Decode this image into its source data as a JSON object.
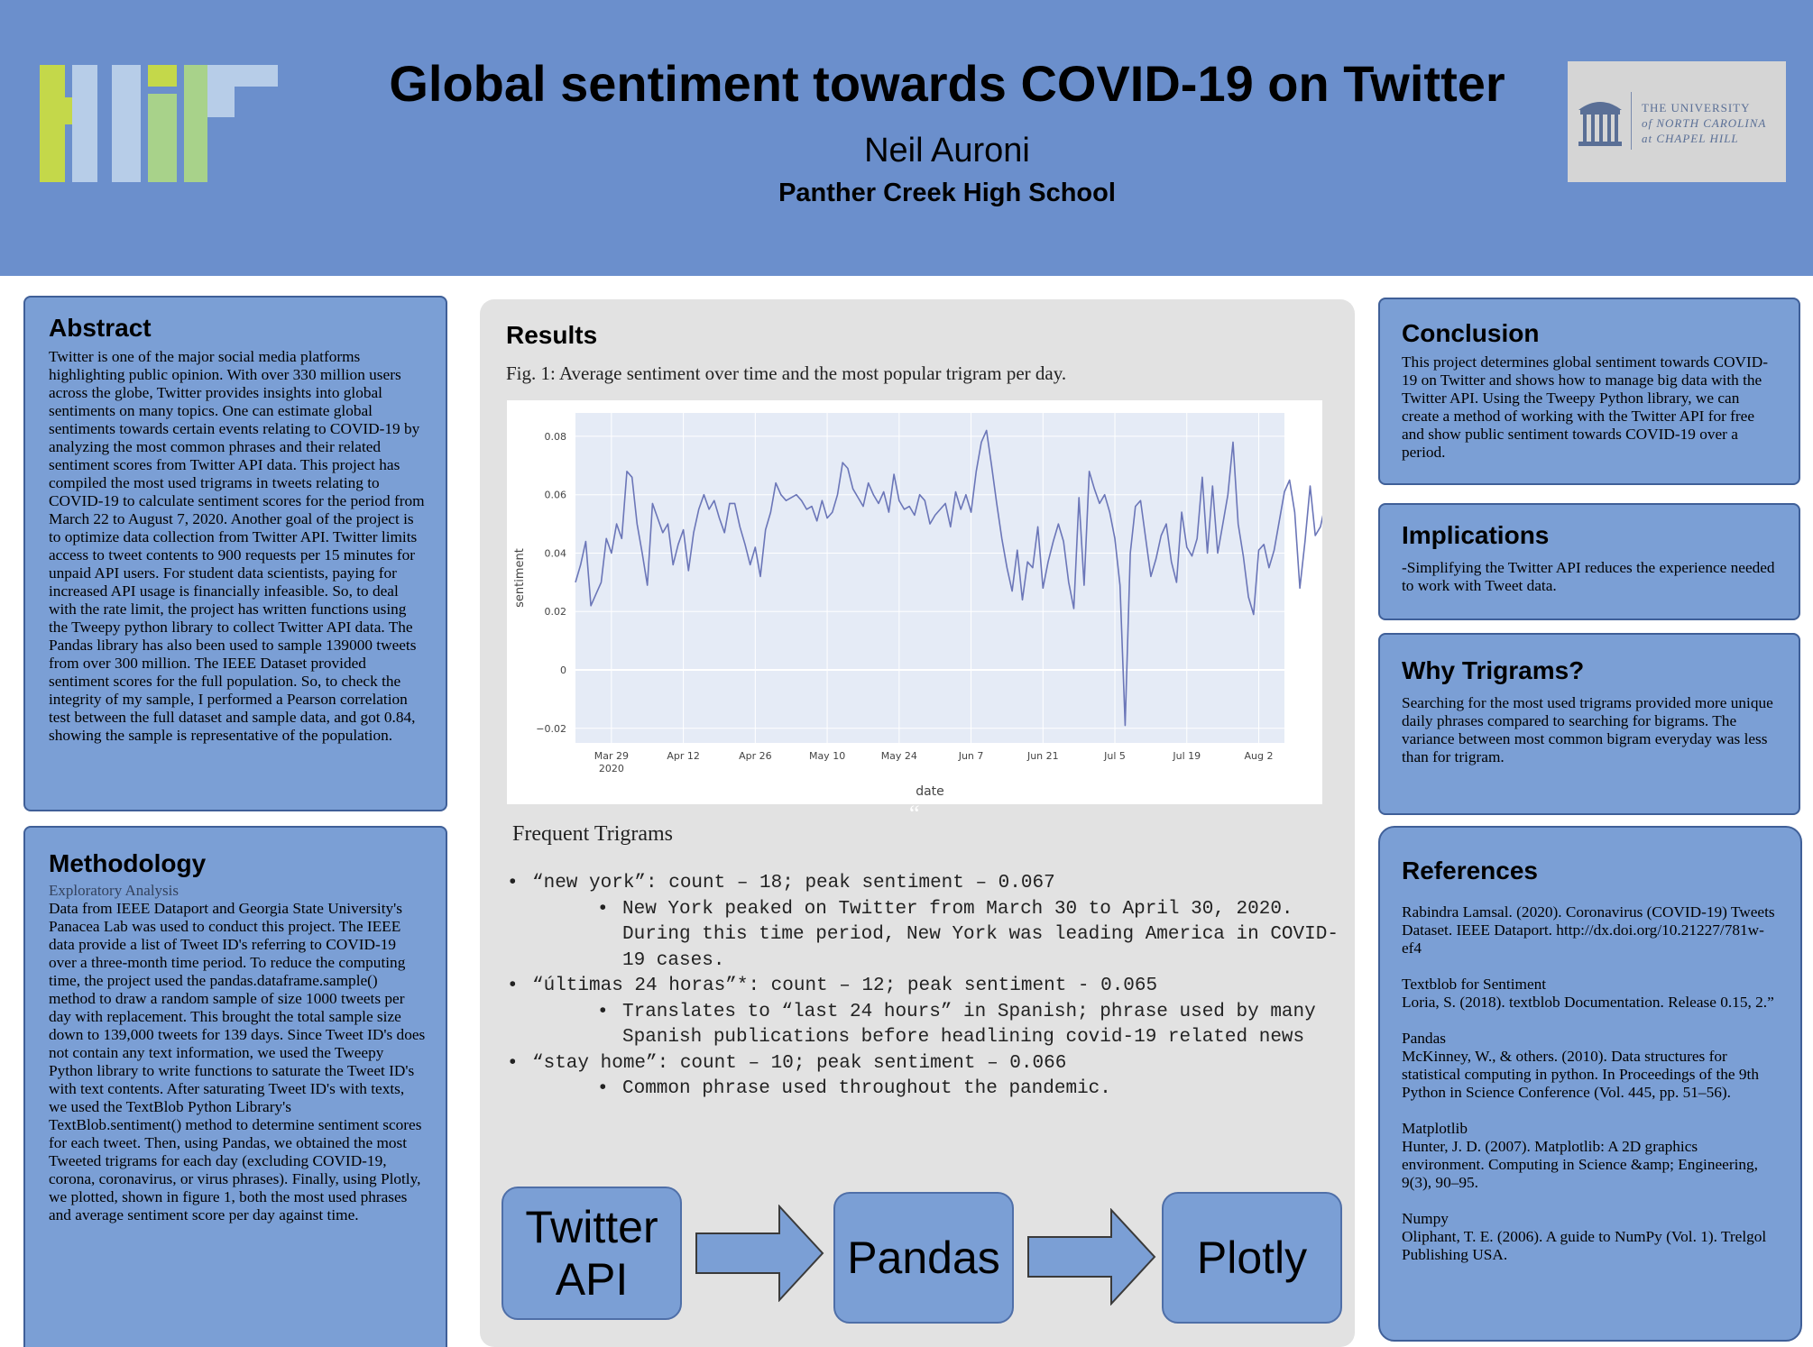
{
  "header": {
    "title": "Global sentiment towards COVID-19 on Twitter",
    "author": "Neil Auroni",
    "school": "Panther Creek High School",
    "unc_logo": {
      "line1": "THE UNIVERSITY",
      "line2": "of NORTH CAROLINA",
      "line3": "at CHAPEL HILL",
      "icon": "old-well-icon"
    },
    "left_logo_icon": "bars-logo-icon"
  },
  "abstract": {
    "heading": "Abstract",
    "text": "Twitter is one of the major social media platforms highlighting public opinion. With over 330 million users across the globe, Twitter provides insights into global sentiments on many topics. One can estimate global sentiments towards certain events relating to COVID-19 by analyzing the most common phrases and their related sentiment scores from Twitter API data. This project has compiled the most used trigrams in tweets relating to COVID-19 to calculate sentiment scores for the period from March 22 to August 7, 2020. Another goal of the project is to optimize data collection from Twitter API. Twitter limits access to tweet contents to 900 requests per 15 minutes for unpaid API users. For student data scientists, paying for increased API usage is financially infeasible. So, to deal with the rate limit, the project has written functions using the Tweepy python library to collect Twitter API data. The Pandas library has also been used to sample 139000 tweets from over 300 million. The IEEE Dataset provided sentiment scores for the full population. So, to check the integrity of my sample, I performed a Pearson correlation test between the full dataset and sample data, and got 0.84, showing the sample is representative of the population."
  },
  "methodology": {
    "heading": "Methodology",
    "subheading": "Exploratory Analysis",
    "text": "Data from IEEE Dataport and Georgia State University's Panacea Lab was used to conduct this project. The IEEE data provide a list of Tweet ID's referring to COVID-19 over a three-month time period. To reduce the computing time, the project used the pandas.dataframe.sample() method to draw a random sample of size 1000 tweets per day with replacement. This brought the total sample size down to 139,000 tweets for 139 days. Since Tweet ID's does not contain any text information, we used the Tweepy Python library to write functions to saturate the Tweet ID's with text contents. After saturating Tweet ID's with texts, we used the TextBlob Python Library's TextBlob.sentiment() method to determine sentiment scores for each tweet. Then, using Pandas, we obtained the most Tweeted trigrams for each day (excluding COVID-19, corona, coronavirus, or virus phrases). Finally, using Plotly, we plotted, shown in figure 1, both the most used phrases and average sentiment score per day against time."
  },
  "results": {
    "heading": "Results",
    "caption": "Fig. 1: Average sentiment over time and the most popular trigram per day.",
    "trigrams_heading": "Frequent Trigrams",
    "stray_mark": "“",
    "trigrams": [
      {
        "line": "“new york”: count – 18; peak sentiment – 0.067",
        "detail": "New York peaked on Twitter from March 30 to April 30, 2020. During this time period, New York was leading America in COVID-19 cases."
      },
      {
        "line": "“últimas 24 horas”*: count – 12; peak sentiment - 0.065",
        "detail": "Translates to “last 24 hours” in Spanish; phrase used by many Spanish publications before headlining covid-19 related news"
      },
      {
        "line": "“stay home”: count – 10; peak sentiment – 0.066",
        "detail": "Common phrase used throughout the pandemic."
      }
    ],
    "flow": [
      "Twitter API",
      "Pandas",
      "Plotly"
    ]
  },
  "chart_data": {
    "type": "line",
    "xlabel": "date",
    "ylabel": "sentiment",
    "ylim": [
      -0.025,
      0.088
    ],
    "y_ticks": [
      "0.08",
      "0.06",
      "0.04",
      "0.02",
      "0",
      "−0.02"
    ],
    "y_tick_values": [
      0.08,
      0.06,
      0.04,
      0.02,
      0,
      -0.02
    ],
    "x_ticks": [
      "Mar 29",
      "Apr 12",
      "Apr 26",
      "May 10",
      "May 24",
      "Jun 7",
      "Jun 21",
      "Jul 5",
      "Jul 19",
      "Aug 2"
    ],
    "x_tick_year": "2020",
    "x_start": "2020-03-22",
    "x_end": "2020-08-07",
    "series": [
      {
        "line_color": "#6b76b8",
        "values": [
          0.03,
          0.036,
          0.044,
          0.022,
          0.026,
          0.03,
          0.045,
          0.04,
          0.05,
          0.045,
          0.068,
          0.066,
          0.05,
          0.04,
          0.029,
          0.057,
          0.052,
          0.047,
          0.05,
          0.036,
          0.043,
          0.048,
          0.034,
          0.047,
          0.055,
          0.06,
          0.055,
          0.058,
          0.052,
          0.047,
          0.057,
          0.057,
          0.049,
          0.043,
          0.036,
          0.042,
          0.032,
          0.048,
          0.054,
          0.064,
          0.06,
          0.058,
          0.059,
          0.06,
          0.058,
          0.055,
          0.056,
          0.051,
          0.058,
          0.052,
          0.054,
          0.06,
          0.071,
          0.069,
          0.062,
          0.059,
          0.056,
          0.064,
          0.06,
          0.057,
          0.061,
          0.054,
          0.067,
          0.058,
          0.055,
          0.056,
          0.053,
          0.06,
          0.058,
          0.05,
          0.053,
          0.055,
          0.057,
          0.049,
          0.061,
          0.055,
          0.06,
          0.054,
          0.068,
          0.078,
          0.082,
          0.07,
          0.057,
          0.045,
          0.035,
          0.027,
          0.041,
          0.024,
          0.037,
          0.035,
          0.049,
          0.028,
          0.037,
          0.044,
          0.05,
          0.044,
          0.03,
          0.021,
          0.059,
          0.029,
          0.068,
          0.062,
          0.057,
          0.06,
          0.054,
          0.045,
          0.029,
          -0.019,
          0.04,
          0.056,
          0.058,
          0.045,
          0.032,
          0.038,
          0.046,
          0.05,
          0.037,
          0.03,
          0.054,
          0.042,
          0.039,
          0.045,
          0.066,
          0.04,
          0.063,
          0.04,
          0.05,
          0.06,
          0.078,
          0.05,
          0.039,
          0.025,
          0.019,
          0.041,
          0.043,
          0.035,
          0.041,
          0.051,
          0.061,
          0.065,
          0.054,
          0.028,
          0.044,
          0.063,
          0.046,
          0.049,
          0.057,
          0.037,
          0.055,
          0.051,
          0.058,
          0.056,
          0.051,
          0.062,
          0.055,
          0.058,
          0.052,
          0.06,
          0.05,
          0.056,
          0.055,
          0.053
        ]
      }
    ]
  },
  "conclusion": {
    "heading": "Conclusion",
    "text": "This project determines global sentiment towards COVID-19 on Twitter and shows how to manage big data with the Twitter API. Using the Tweepy Python library, we can create a method of working with the Twitter API for free and show public sentiment towards COVID-19 over a period."
  },
  "implications": {
    "heading": "Implications",
    "text": "-Simplifying the Twitter API reduces the experience needed to work with Tweet data."
  },
  "why": {
    "heading": "Why Trigrams?",
    "text": "Searching for the most used trigrams provided more unique daily phrases compared to searching for bigrams. The variance between most common bigram everyday was less than for trigram."
  },
  "references": {
    "heading": "References",
    "items": [
      {
        "label": "",
        "text": "Rabindra Lamsal. (2020). Coronavirus (COVID-19) Tweets Dataset. IEEE Dataport. http://dx.doi.org/10.21227/781w-ef4"
      },
      {
        "label": "Textblob for Sentiment",
        "text": "Loria, S. (2018). textblob Documentation. Release 0.15, 2.”"
      },
      {
        "label": "Pandas",
        "text": "McKinney, W., & others. (2010). Data structures for statistical computing in python. In Proceedings of the 9th Python in Science Conference (Vol. 445, pp. 51–56)."
      },
      {
        "label": "Matplotlib",
        "text": "Hunter, J. D. (2007). Matplotlib: A 2D graphics environment. Computing in Science &amp; Engineering, 9(3), 90–95."
      },
      {
        "label": "Numpy",
        "text": "Oliphant, T. E. (2006). A guide to NumPy (Vol. 1). Trelgol Publishing USA."
      }
    ]
  },
  "colors": {
    "header_bg": "#6b8fcc",
    "box_bg": "#7b9fd5",
    "box_border": "#3f5f98",
    "plot_bg": "#e5ebf6",
    "line": "#6b76b8"
  }
}
